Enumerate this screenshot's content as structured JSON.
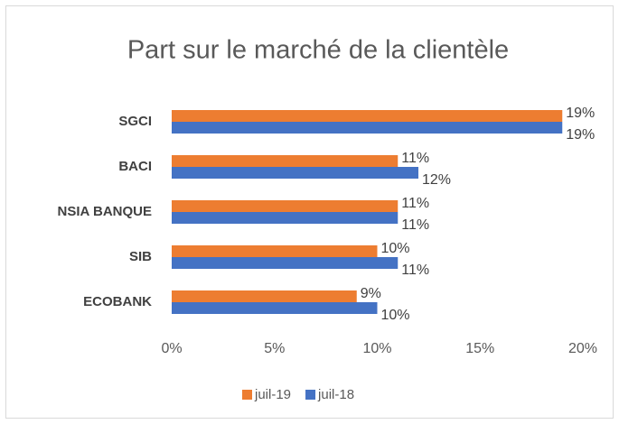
{
  "chart_data": {
    "type": "bar",
    "orientation": "horizontal",
    "title": "Part sur le marché de la clientèle",
    "categories": [
      "SGCI",
      "BACI",
      "NSIA BANQUE",
      "SIB",
      "ECOBANK"
    ],
    "series": [
      {
        "name": "juil-19",
        "color": "#ed7d31",
        "values": [
          19,
          11,
          11,
          10,
          9
        ],
        "value_labels": [
          "19%",
          "11%",
          "11%",
          "10%",
          "9%"
        ]
      },
      {
        "name": "juil-18",
        "color": "#4472c4",
        "values": [
          19,
          12,
          11,
          11,
          10
        ],
        "value_labels": [
          "19%",
          "12%",
          "11%",
          "11%",
          "10%"
        ]
      }
    ],
    "xlim": [
      0,
      20
    ],
    "xticks": [
      {
        "value": 0,
        "label": "0%"
      },
      {
        "value": 5,
        "label": "5%"
      },
      {
        "value": 10,
        "label": "10%"
      },
      {
        "value": 15,
        "label": "15%"
      },
      {
        "value": 20,
        "label": "20%"
      }
    ],
    "grid": false,
    "legend": "bottom"
  }
}
